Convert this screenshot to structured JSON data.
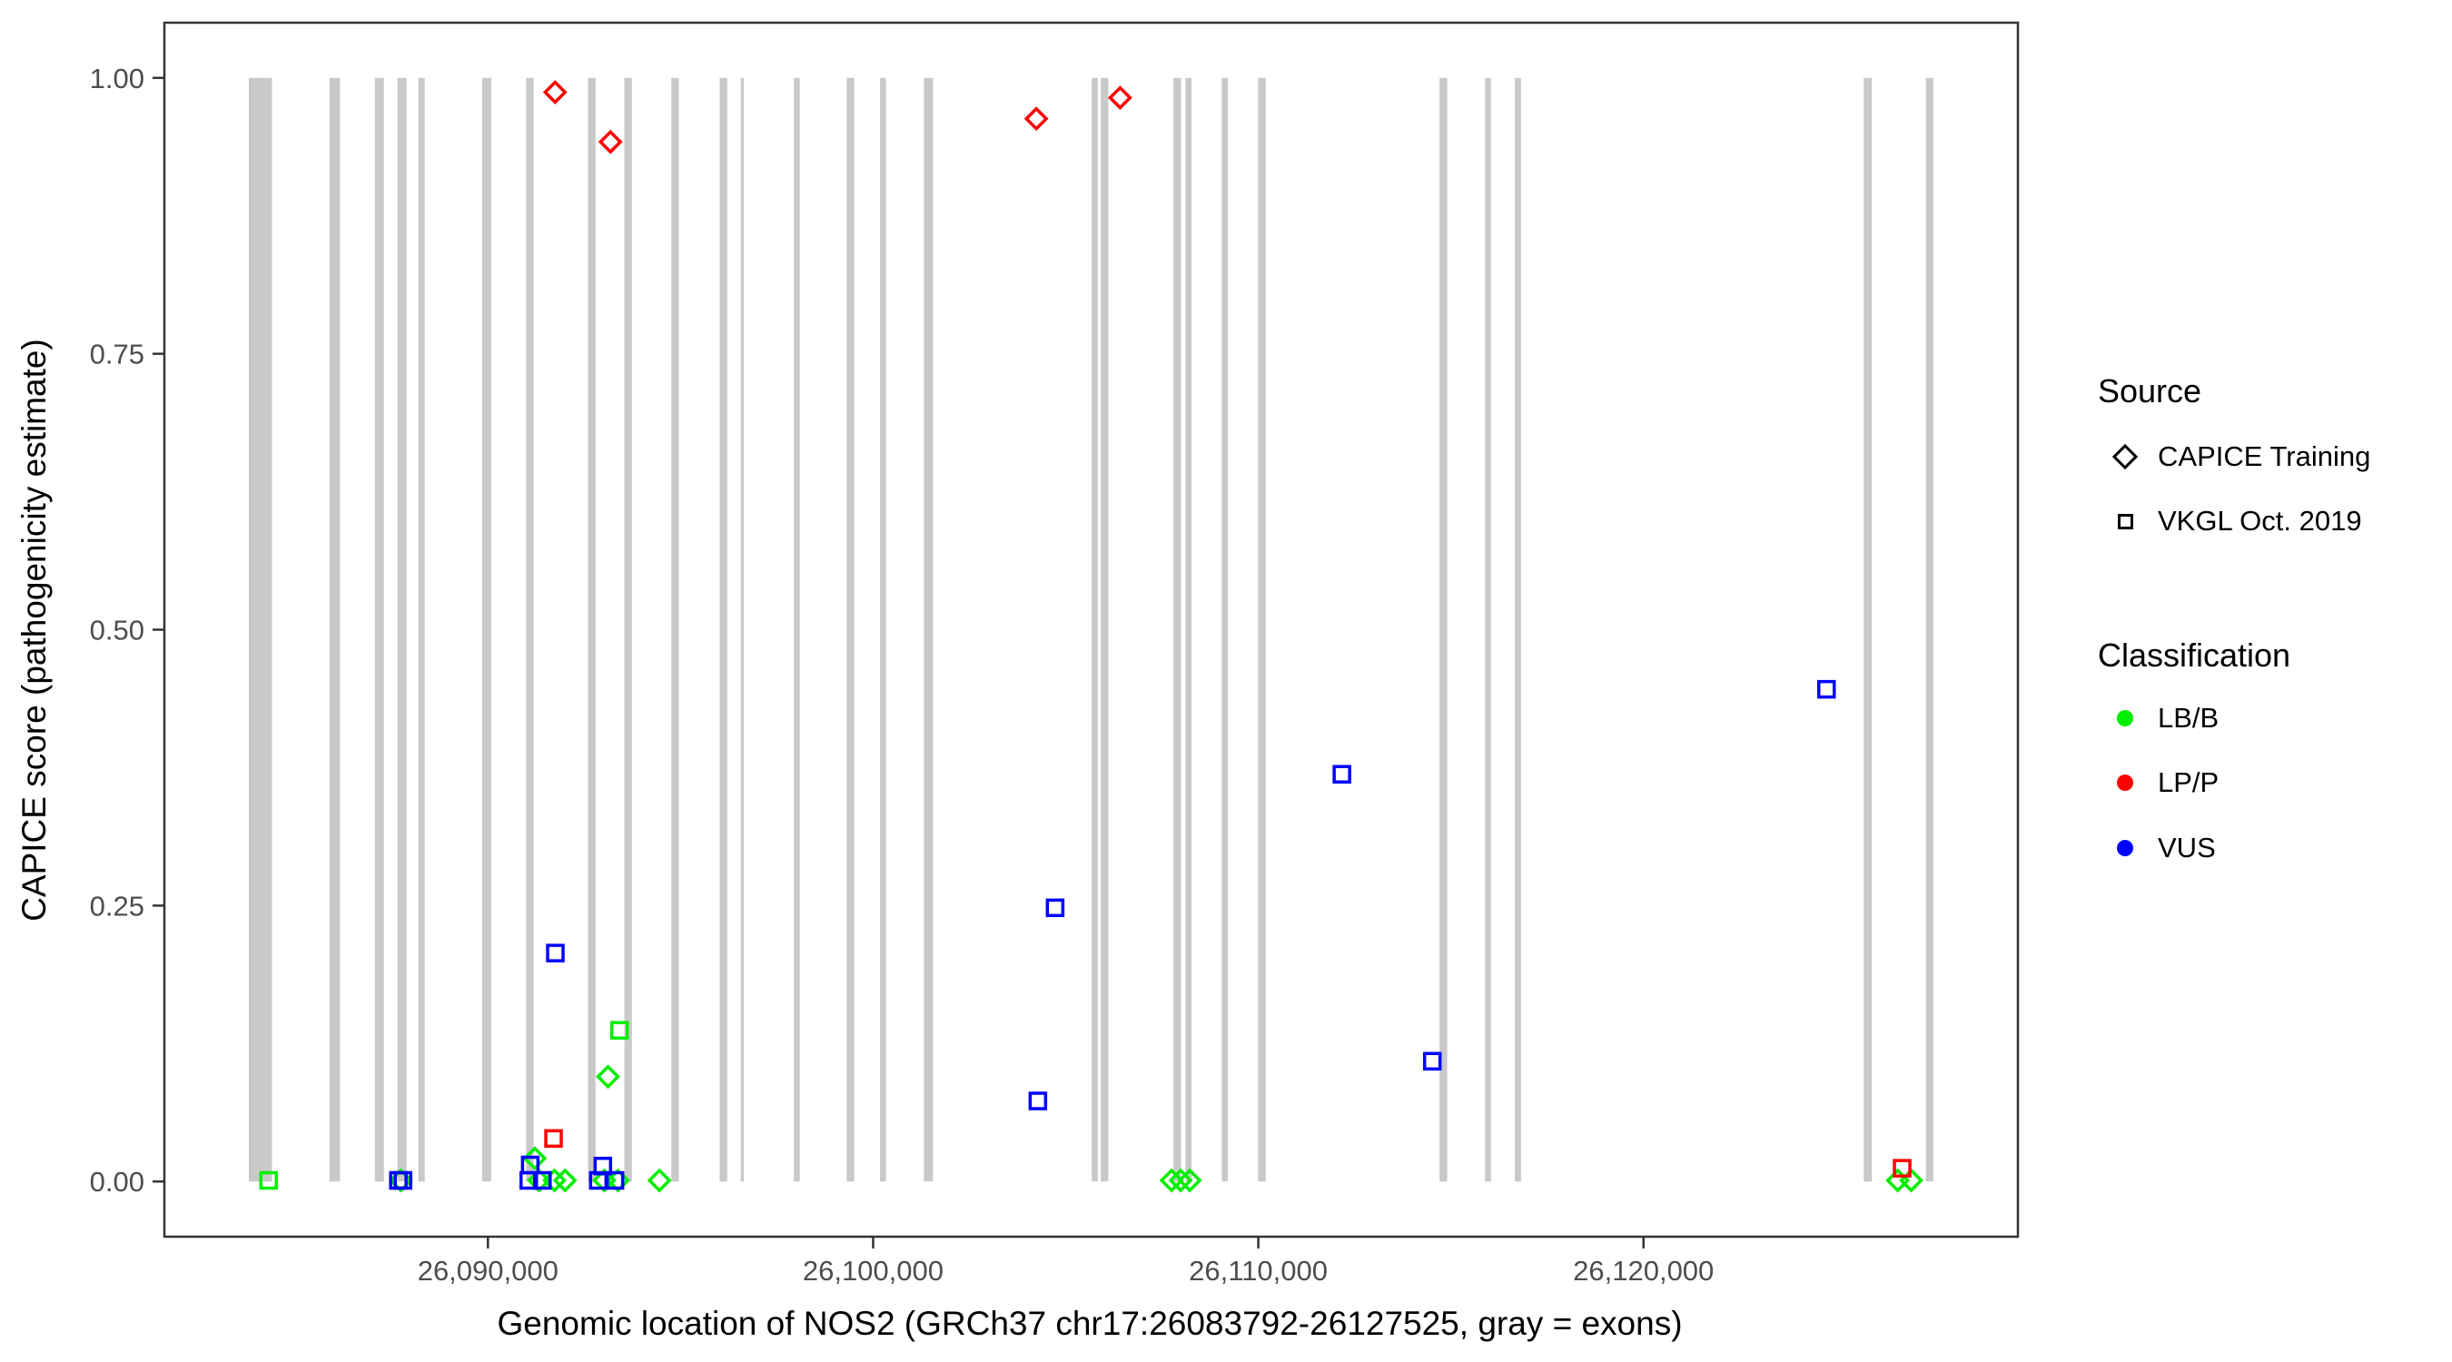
{
  "chart_data": {
    "type": "scatter",
    "xlabel": "Genomic location of NOS2 (GRCh37 chr17:26083792-26127525, gray = exons)",
    "ylabel": "CAPICE score (pathogenicity estimate)",
    "x_range": [
      26081600,
      26129720
    ],
    "y_range": [
      -0.05,
      1.05
    ],
    "x_ticks": [
      26090000,
      26100000,
      26110000,
      26120000
    ],
    "x_tick_labels": [
      "26,090,000",
      "26,100,000",
      "26,110,000",
      "26,120,000"
    ],
    "y_ticks": [
      0,
      0.25,
      0.5,
      0.75,
      1
    ],
    "y_tick_labels": [
      "0.00",
      "0.25",
      "0.50",
      "0.75",
      "1.00"
    ],
    "grid": false,
    "colors": {
      "LB/B": "#00ee00",
      "LP/P": "#ff0000",
      "VUS": "#0000ff",
      "exon": "#c9c9c9",
      "axis": "#333333",
      "tick_label": "#4d4d4d"
    },
    "exons": [
      [
        26083792,
        26084394
      ],
      [
        26085886,
        26086161
      ],
      [
        26087064,
        26087299
      ],
      [
        26087653,
        26087888
      ],
      [
        26088195,
        26088359
      ],
      [
        26089851,
        26090086
      ],
      [
        26090991,
        26091187
      ],
      [
        26092600,
        26092795
      ],
      [
        26093542,
        26093738
      ],
      [
        26094760,
        26094956
      ],
      [
        26096016,
        26096212
      ],
      [
        26096565,
        26096645
      ],
      [
        26097941,
        26098096
      ],
      [
        26099314,
        26099510
      ],
      [
        26100179,
        26100334
      ],
      [
        26101317,
        26101552
      ],
      [
        26105675,
        26105833
      ],
      [
        26105911,
        26106106
      ],
      [
        26107796,
        26107991
      ],
      [
        26108109,
        26108267
      ],
      [
        26109051,
        26109209
      ],
      [
        26109994,
        26110192
      ],
      [
        26114706,
        26114904
      ],
      [
        26115884,
        26116042
      ],
      [
        26116661,
        26116820
      ],
      [
        26125716,
        26125928
      ],
      [
        26127330,
        26127525
      ]
    ],
    "series": [
      {
        "name": "CAPICE Training",
        "marker": "diamond",
        "points": [
          {
            "pos": 26091744,
            "score": 0.987,
            "classification": "LP/P"
          },
          {
            "pos": 26093181,
            "score": 0.942,
            "classification": "LP/P"
          },
          {
            "pos": 26104237,
            "score": 0.963,
            "classification": "LP/P"
          },
          {
            "pos": 26106412,
            "score": 0.982,
            "classification": "LP/P"
          },
          {
            "pos": 26093117,
            "score": 0.095,
            "classification": "LB/B"
          },
          {
            "pos": 26087740,
            "score": 0.001,
            "classification": "LB/B"
          },
          {
            "pos": 26091216,
            "score": 0.021,
            "classification": "LB/B"
          },
          {
            "pos": 26091327,
            "score": 0.001,
            "classification": "LB/B"
          },
          {
            "pos": 26091727,
            "score": 0.001,
            "classification": "LB/B"
          },
          {
            "pos": 26092003,
            "score": 0.001,
            "classification": "LB/B"
          },
          {
            "pos": 26093022,
            "score": 0.001,
            "classification": "LB/B"
          },
          {
            "pos": 26093376,
            "score": 0.001,
            "classification": "LB/B"
          },
          {
            "pos": 26094453,
            "score": 0.001,
            "classification": "LB/B"
          },
          {
            "pos": 26107749,
            "score": 0.001,
            "classification": "LB/B"
          },
          {
            "pos": 26107984,
            "score": 0.001,
            "classification": "LB/B"
          },
          {
            "pos": 26108220,
            "score": 0.001,
            "classification": "LB/B"
          },
          {
            "pos": 26126600,
            "score": 0.001,
            "classification": "LB/B"
          },
          {
            "pos": 26126950,
            "score": 0.001,
            "classification": "LB/B"
          }
        ]
      },
      {
        "name": "VKGL Oct. 2019",
        "marker": "square",
        "points": [
          {
            "pos": 26084305,
            "score": 0.001,
            "classification": "LB/B"
          },
          {
            "pos": 26087675,
            "score": 0.001,
            "classification": "VUS"
          },
          {
            "pos": 26087795,
            "score": 0.001,
            "classification": "VUS"
          },
          {
            "pos": 26091750,
            "score": 0.207,
            "classification": "VUS"
          },
          {
            "pos": 26091703,
            "score": 0.039,
            "classification": "LP/P"
          },
          {
            "pos": 26093416,
            "score": 0.137,
            "classification": "LB/B"
          },
          {
            "pos": 26091098,
            "score": 0.015,
            "classification": "VUS"
          },
          {
            "pos": 26091060,
            "score": 0.001,
            "classification": "VUS"
          },
          {
            "pos": 26091414,
            "score": 0.001,
            "classification": "VUS"
          },
          {
            "pos": 26092983,
            "score": 0.014,
            "classification": "VUS"
          },
          {
            "pos": 26092865,
            "score": 0.001,
            "classification": "VUS"
          },
          {
            "pos": 26093298,
            "score": 0.001,
            "classification": "VUS"
          },
          {
            "pos": 26104725,
            "score": 0.248,
            "classification": "VUS"
          },
          {
            "pos": 26104277,
            "score": 0.073,
            "classification": "VUS"
          },
          {
            "pos": 26112170,
            "score": 0.369,
            "classification": "VUS"
          },
          {
            "pos": 26114517,
            "score": 0.109,
            "classification": "VUS"
          },
          {
            "pos": 26124751,
            "score": 0.446,
            "classification": "VUS"
          },
          {
            "pos": 26126715,
            "score": 0.012,
            "classification": "LP/P"
          }
        ]
      }
    ]
  },
  "legend": {
    "source": {
      "title": "Source",
      "items": [
        {
          "label": "CAPICE Training",
          "marker": "diamond"
        },
        {
          "label": "VKGL Oct. 2019",
          "marker": "square"
        }
      ]
    },
    "classification": {
      "title": "Classification",
      "items": [
        {
          "label": "LB/B",
          "color": "#00ee00"
        },
        {
          "label": "LP/P",
          "color": "#ff0000"
        },
        {
          "label": "VUS",
          "color": "#0000ff"
        }
      ]
    }
  }
}
